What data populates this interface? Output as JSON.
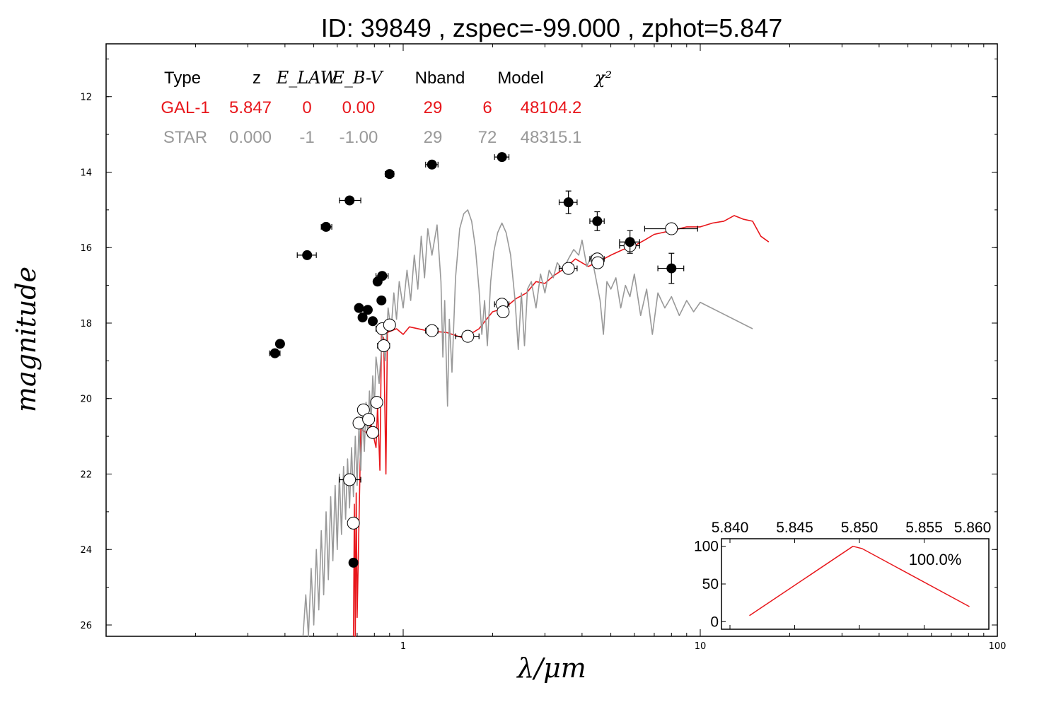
{
  "chart_data": {
    "type": "scatter",
    "title": "ID:  39849 , zspec=-99.000 , zphot=5.847",
    "xlabel": "λ/μm",
    "ylabel": "magnitude",
    "x_scale": "log",
    "xlim": [
      0.1,
      100
    ],
    "ylim": [
      26.3,
      10.6
    ],
    "x_ticks": [
      "1",
      "10",
      "100"
    ],
    "y_ticks": [
      "12",
      "14",
      "16",
      "18",
      "20",
      "22",
      "24",
      "26"
    ],
    "table": {
      "headers": [
        "Type",
        "z",
        "E_LAW",
        "E_B-V",
        "Nband",
        "Model",
        "χ²"
      ],
      "rows": [
        {
          "cells": [
            "GAL-1",
            "5.847",
            "0",
            "0.00",
            "29",
            "6",
            "48104.2"
          ],
          "color": "#e8161b"
        },
        {
          "cells": [
            "STAR",
            "0.000",
            "-1",
            "-1.00",
            "29",
            "72",
            "48315.1"
          ],
          "color": "#999999"
        }
      ]
    },
    "series": [
      {
        "marker": "filled",
        "points": [
          {
            "x": 0.37,
            "y": 18.8,
            "xerr": [
              0.355,
              0.385
            ]
          },
          {
            "x": 0.385,
            "y": 18.55,
            "xerr": [
              0.375,
              0.395
            ]
          },
          {
            "x": 0.475,
            "y": 16.2,
            "xerr": [
              0.44,
              0.51
            ]
          },
          {
            "x": 0.55,
            "y": 15.45,
            "xerr": [
              0.53,
              0.575
            ]
          },
          {
            "x": 0.66,
            "y": 14.75,
            "xerr": [
              0.61,
              0.72
            ]
          },
          {
            "x": 0.9,
            "y": 14.05,
            "xerr": [
              0.87,
              0.93
            ]
          },
          {
            "x": 1.25,
            "y": 13.8,
            "xerr": [
              1.19,
              1.31
            ]
          },
          {
            "x": 2.15,
            "y": 13.6,
            "xerr": [
              2.03,
              2.27
            ]
          },
          {
            "x": 3.6,
            "y": 14.8,
            "xerr": [
              3.35,
              3.85
            ],
            "yerr": [
              14.5,
              15.1
            ]
          },
          {
            "x": 4.5,
            "y": 15.3,
            "xerr": [
              4.25,
              4.75
            ],
            "yerr": [
              15.05,
              15.55
            ]
          },
          {
            "x": 5.8,
            "y": 15.85,
            "xerr": [
              5.35,
              6.25
            ],
            "yerr": [
              15.55,
              16.15
            ]
          },
          {
            "x": 8.0,
            "y": 16.55,
            "xerr": [
              7.2,
              8.8
            ],
            "yerr": [
              16.15,
              16.95
            ]
          },
          {
            "x": 0.71,
            "y": 17.6
          },
          {
            "x": 0.73,
            "y": 17.85
          },
          {
            "x": 0.76,
            "y": 17.65
          },
          {
            "x": 0.79,
            "y": 17.95
          },
          {
            "x": 0.82,
            "y": 16.9
          },
          {
            "x": 0.85,
            "y": 16.75,
            "xerr": [
              0.81,
              0.89
            ]
          },
          {
            "x": 0.845,
            "y": 17.4
          },
          {
            "x": 0.68,
            "y": 24.35
          }
        ]
      },
      {
        "marker": "open",
        "points": [
          {
            "x": 0.66,
            "y": 22.15,
            "xerr": [
              0.61,
              0.72
            ]
          },
          {
            "x": 0.68,
            "y": 23.3
          },
          {
            "x": 0.71,
            "y": 20.65
          },
          {
            "x": 0.735,
            "y": 20.3
          },
          {
            "x": 0.765,
            "y": 20.55
          },
          {
            "x": 0.79,
            "y": 20.9
          },
          {
            "x": 0.815,
            "y": 20.1
          },
          {
            "x": 0.85,
            "y": 18.15,
            "xerr": [
              0.81,
              0.89
            ]
          },
          {
            "x": 0.86,
            "y": 18.6,
            "xerr": [
              0.82,
              0.9
            ]
          },
          {
            "x": 0.9,
            "y": 18.05
          },
          {
            "x": 1.25,
            "y": 18.2,
            "xerr": [
              1.19,
              1.31
            ]
          },
          {
            "x": 1.65,
            "y": 18.35,
            "xerr": [
              1.5,
              1.8
            ]
          },
          {
            "x": 2.15,
            "y": 17.5,
            "xerr": [
              2.03,
              2.27
            ]
          },
          {
            "x": 2.17,
            "y": 17.7
          },
          {
            "x": 3.6,
            "y": 16.55,
            "xerr": [
              3.35,
              3.85
            ]
          },
          {
            "x": 4.5,
            "y": 16.3,
            "xerr": [
              4.25,
              4.75
            ]
          },
          {
            "x": 4.52,
            "y": 16.4
          },
          {
            "x": 5.8,
            "y": 15.95,
            "xerr": [
              5.35,
              6.25
            ]
          },
          {
            "x": 8.0,
            "y": 15.5,
            "xerr": [
              6.5,
              9.8
            ]
          }
        ]
      },
      {
        "marker": "line",
        "color": "#e8161b",
        "points": [
          {
            "x": 0.68,
            "y": 26.3
          },
          {
            "x": 0.685,
            "y": 22.8
          },
          {
            "x": 0.69,
            "y": 26.3
          },
          {
            "x": 0.695,
            "y": 22.5
          },
          {
            "x": 0.7,
            "y": 25.8
          },
          {
            "x": 0.72,
            "y": 20.8
          },
          {
            "x": 0.75,
            "y": 20.9
          },
          {
            "x": 0.78,
            "y": 20.7
          },
          {
            "x": 0.81,
            "y": 21.3
          },
          {
            "x": 0.82,
            "y": 20.2
          },
          {
            "x": 0.835,
            "y": 21.9
          },
          {
            "x": 0.845,
            "y": 18.3
          },
          {
            "x": 0.86,
            "y": 18.4
          },
          {
            "x": 0.875,
            "y": 22.0
          },
          {
            "x": 0.885,
            "y": 18.25
          },
          {
            "x": 0.95,
            "y": 18.15
          },
          {
            "x": 1.0,
            "y": 18.3
          },
          {
            "x": 1.05,
            "y": 18.1
          },
          {
            "x": 1.2,
            "y": 18.2
          },
          {
            "x": 1.4,
            "y": 18.25
          },
          {
            "x": 1.6,
            "y": 18.4
          },
          {
            "x": 1.8,
            "y": 18.15
          },
          {
            "x": 2.0,
            "y": 17.7
          },
          {
            "x": 2.2,
            "y": 17.6
          },
          {
            "x": 2.4,
            "y": 17.35
          },
          {
            "x": 2.6,
            "y": 17.2
          },
          {
            "x": 2.8,
            "y": 16.9
          },
          {
            "x": 3.0,
            "y": 16.95
          },
          {
            "x": 3.2,
            "y": 16.75
          },
          {
            "x": 3.5,
            "y": 16.55
          },
          {
            "x": 3.8,
            "y": 16.3
          },
          {
            "x": 4.2,
            "y": 16.5
          },
          {
            "x": 4.6,
            "y": 16.35
          },
          {
            "x": 5.0,
            "y": 16.2
          },
          {
            "x": 5.5,
            "y": 16.05
          },
          {
            "x": 6.0,
            "y": 15.95
          },
          {
            "x": 6.5,
            "y": 15.8
          },
          {
            "x": 7.0,
            "y": 15.65
          },
          {
            "x": 8.0,
            "y": 15.55
          },
          {
            "x": 9.0,
            "y": 15.45
          },
          {
            "x": 10.0,
            "y": 15.45
          },
          {
            "x": 11.0,
            "y": 15.35
          },
          {
            "x": 12.0,
            "y": 15.3
          },
          {
            "x": 13.0,
            "y": 15.15
          },
          {
            "x": 14.0,
            "y": 15.25
          },
          {
            "x": 15.0,
            "y": 15.3
          },
          {
            "x": 16.0,
            "y": 15.7
          },
          {
            "x": 17.0,
            "y": 15.85
          }
        ]
      },
      {
        "marker": "line",
        "color": "#999999",
        "points": [
          {
            "x": 0.46,
            "y": 26.3
          },
          {
            "x": 0.47,
            "y": 25.2
          },
          {
            "x": 0.48,
            "y": 26.3
          },
          {
            "x": 0.49,
            "y": 24.5
          },
          {
            "x": 0.5,
            "y": 26.0
          },
          {
            "x": 0.51,
            "y": 24.0
          },
          {
            "x": 0.52,
            "y": 25.6
          },
          {
            "x": 0.53,
            "y": 23.5
          },
          {
            "x": 0.54,
            "y": 25.2
          },
          {
            "x": 0.55,
            "y": 23.0
          },
          {
            "x": 0.56,
            "y": 24.8
          },
          {
            "x": 0.57,
            "y": 22.6
          },
          {
            "x": 0.58,
            "y": 24.3
          },
          {
            "x": 0.59,
            "y": 22.3
          },
          {
            "x": 0.6,
            "y": 24.0
          },
          {
            "x": 0.61,
            "y": 22.0
          },
          {
            "x": 0.62,
            "y": 23.6
          },
          {
            "x": 0.63,
            "y": 21.8
          },
          {
            "x": 0.64,
            "y": 23.2
          },
          {
            "x": 0.65,
            "y": 21.6
          },
          {
            "x": 0.66,
            "y": 22.9
          },
          {
            "x": 0.67,
            "y": 21.3
          },
          {
            "x": 0.68,
            "y": 22.6
          },
          {
            "x": 0.69,
            "y": 21.0
          },
          {
            "x": 0.7,
            "y": 22.3
          },
          {
            "x": 0.71,
            "y": 20.7
          },
          {
            "x": 0.72,
            "y": 21.9
          },
          {
            "x": 0.73,
            "y": 20.4
          },
          {
            "x": 0.74,
            "y": 21.4
          },
          {
            "x": 0.75,
            "y": 20.1
          },
          {
            "x": 0.76,
            "y": 21.0
          },
          {
            "x": 0.77,
            "y": 19.8
          },
          {
            "x": 0.78,
            "y": 20.6
          },
          {
            "x": 0.79,
            "y": 19.4
          },
          {
            "x": 0.8,
            "y": 20.2
          },
          {
            "x": 0.81,
            "y": 18.9
          },
          {
            "x": 0.83,
            "y": 19.6
          },
          {
            "x": 0.85,
            "y": 18.3
          },
          {
            "x": 0.87,
            "y": 19.0
          },
          {
            "x": 0.89,
            "y": 17.6
          },
          {
            "x": 0.91,
            "y": 18.2
          },
          {
            "x": 0.93,
            "y": 17.2
          },
          {
            "x": 0.95,
            "y": 17.9
          },
          {
            "x": 0.97,
            "y": 16.9
          },
          {
            "x": 1.0,
            "y": 17.6
          },
          {
            "x": 1.03,
            "y": 16.6
          },
          {
            "x": 1.06,
            "y": 17.4
          },
          {
            "x": 1.09,
            "y": 16.2
          },
          {
            "x": 1.12,
            "y": 17.1
          },
          {
            "x": 1.15,
            "y": 15.7
          },
          {
            "x": 1.18,
            "y": 16.8
          },
          {
            "x": 1.21,
            "y": 15.5
          },
          {
            "x": 1.25,
            "y": 16.2
          },
          {
            "x": 1.3,
            "y": 15.4
          },
          {
            "x": 1.34,
            "y": 16.9
          },
          {
            "x": 1.36,
            "y": 18.9
          },
          {
            "x": 1.38,
            "y": 17.4
          },
          {
            "x": 1.41,
            "y": 20.2
          },
          {
            "x": 1.43,
            "y": 17.9
          },
          {
            "x": 1.46,
            "y": 19.3
          },
          {
            "x": 1.5,
            "y": 16.8
          },
          {
            "x": 1.55,
            "y": 15.5
          },
          {
            "x": 1.6,
            "y": 15.1
          },
          {
            "x": 1.65,
            "y": 15.0
          },
          {
            "x": 1.7,
            "y": 15.3
          },
          {
            "x": 1.75,
            "y": 16.0
          },
          {
            "x": 1.8,
            "y": 17.1
          },
          {
            "x": 1.84,
            "y": 18.3
          },
          {
            "x": 1.88,
            "y": 17.4
          },
          {
            "x": 1.92,
            "y": 18.6
          },
          {
            "x": 1.97,
            "y": 16.9
          },
          {
            "x": 2.02,
            "y": 16.1
          },
          {
            "x": 2.08,
            "y": 15.6
          },
          {
            "x": 2.15,
            "y": 15.35
          },
          {
            "x": 2.22,
            "y": 15.6
          },
          {
            "x": 2.3,
            "y": 16.2
          },
          {
            "x": 2.38,
            "y": 17.4
          },
          {
            "x": 2.44,
            "y": 18.7
          },
          {
            "x": 2.5,
            "y": 17.2
          },
          {
            "x": 2.56,
            "y": 18.6
          },
          {
            "x": 2.62,
            "y": 17.1
          },
          {
            "x": 2.7,
            "y": 16.9
          },
          {
            "x": 2.8,
            "y": 17.6
          },
          {
            "x": 2.9,
            "y": 16.7
          },
          {
            "x": 3.0,
            "y": 17.2
          },
          {
            "x": 3.1,
            "y": 16.6
          },
          {
            "x": 3.2,
            "y": 16.8
          },
          {
            "x": 3.3,
            "y": 16.4
          },
          {
            "x": 3.45,
            "y": 16.6
          },
          {
            "x": 3.6,
            "y": 16.3
          },
          {
            "x": 3.75,
            "y": 16.05
          },
          {
            "x": 3.9,
            "y": 16.2
          },
          {
            "x": 4.0,
            "y": 15.8
          },
          {
            "x": 4.15,
            "y": 16.5
          },
          {
            "x": 4.3,
            "y": 16.2
          },
          {
            "x": 4.45,
            "y": 16.8
          },
          {
            "x": 4.6,
            "y": 17.4
          },
          {
            "x": 4.72,
            "y": 18.3
          },
          {
            "x": 4.85,
            "y": 16.9
          },
          {
            "x": 5.0,
            "y": 17.1
          },
          {
            "x": 5.2,
            "y": 16.8
          },
          {
            "x": 5.4,
            "y": 17.6
          },
          {
            "x": 5.6,
            "y": 17.0
          },
          {
            "x": 5.8,
            "y": 17.3
          },
          {
            "x": 6.0,
            "y": 16.7
          },
          {
            "x": 6.3,
            "y": 17.8
          },
          {
            "x": 6.6,
            "y": 17.1
          },
          {
            "x": 6.9,
            "y": 18.3
          },
          {
            "x": 7.2,
            "y": 17.2
          },
          {
            "x": 7.6,
            "y": 17.6
          },
          {
            "x": 8.0,
            "y": 17.3
          },
          {
            "x": 8.5,
            "y": 17.8
          },
          {
            "x": 9.0,
            "y": 17.4
          },
          {
            "x": 9.5,
            "y": 17.7
          },
          {
            "x": 10.0,
            "y": 17.45
          },
          {
            "x": 15.0,
            "y": 18.15
          }
        ]
      }
    ],
    "inset": {
      "type": "line",
      "color": "#e8161b",
      "x_ticks": [
        "5.840",
        "5.845",
        "5.850",
        "5.855",
        "5.860"
      ],
      "y_ticks": [
        "0",
        "50",
        "100"
      ],
      "xlim": [
        5.84,
        5.86
      ],
      "ylim": [
        -10,
        110
      ],
      "x": [
        5.8415,
        5.8495,
        5.8502,
        5.8585
      ],
      "y": [
        8,
        100,
        97,
        20
      ],
      "annotation": "100.0%"
    }
  }
}
